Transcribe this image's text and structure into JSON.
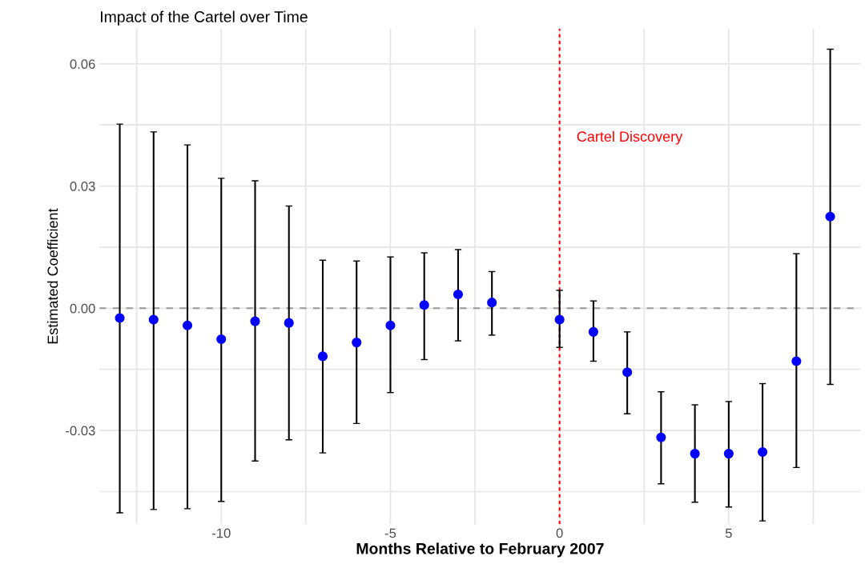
{
  "chart_data": {
    "type": "scatter",
    "title": "Impact of the Cartel over Time",
    "xlabel": "Months Relative to February 2007",
    "ylabel": "Estimated Coefficient",
    "x": [
      -13,
      -12,
      -11,
      -10,
      -9,
      -8,
      -7,
      -6,
      -5,
      -4,
      -3,
      -2,
      0,
      1,
      2,
      3,
      4,
      5,
      6,
      7,
      8
    ],
    "series": [
      {
        "color": "#0000ff",
        "values": [
          -0.0024,
          -0.0028,
          -0.0042,
          -0.0076,
          -0.0032,
          -0.0036,
          -0.0118,
          -0.0084,
          -0.0042,
          0.0008,
          0.0034,
          0.0014,
          -0.0028,
          -0.0058,
          -0.0157,
          -0.0317,
          -0.0357,
          -0.0357,
          -0.0353,
          -0.013,
          0.0225
        ],
        "errors": [
          [
            -0.0502,
            0.0452
          ],
          [
            -0.0494,
            0.0433
          ],
          [
            -0.0492,
            0.0401
          ],
          [
            -0.0474,
            0.0319
          ],
          [
            -0.0375,
            0.0313
          ],
          [
            -0.0323,
            0.0251
          ],
          [
            -0.0355,
            0.0118
          ],
          [
            -0.0283,
            0.0116
          ],
          [
            -0.0207,
            0.0126
          ],
          [
            -0.0126,
            0.0136
          ],
          [
            -0.008,
            0.0144
          ],
          [
            -0.0066,
            0.009
          ],
          [
            -0.0096,
            0.0044
          ],
          [
            -0.013,
            0.0018
          ],
          [
            -0.0259,
            -0.0058
          ],
          [
            -0.0431,
            -0.0205
          ],
          [
            -0.0476,
            -0.0237
          ],
          [
            -0.0488,
            -0.0229
          ],
          [
            -0.0522,
            -0.0185
          ],
          [
            -0.0391,
            0.0134
          ],
          [
            -0.0187,
            0.0636
          ]
        ]
      }
    ],
    "xlim": [
      -13.6,
      8.9
    ],
    "ylim": [
      -0.053,
      0.0686
    ],
    "xticks": [
      {
        "value": -12.5,
        "label": null
      },
      {
        "value": -10,
        "label": "-10"
      },
      {
        "value": -7.5,
        "label": null
      },
      {
        "value": -5,
        "label": "-5"
      },
      {
        "value": -2.5,
        "label": null
      },
      0,
      {
        "value": 2.5,
        "label": null
      },
      5,
      {
        "value": 7.5,
        "label": null
      }
    ],
    "yticks": [
      {
        "value": -0.045,
        "label": null
      },
      {
        "value": -0.03,
        "label": "-0.03"
      },
      {
        "value": -0.015,
        "label": null
      },
      {
        "value": 0,
        "label": "0.00"
      },
      {
        "value": 0.015,
        "label": null
      },
      {
        "value": 0.03,
        "label": "0.03"
      },
      {
        "value": 0.045,
        "label": null
      },
      {
        "value": 0.06,
        "label": "0.06"
      }
    ],
    "grid": true,
    "marker": "circle",
    "ref_lines": [
      {
        "axis": "x",
        "value": 0,
        "label": "Cartel Discovery",
        "color": "#ff0000",
        "line_style": "dotted"
      },
      {
        "axis": "y",
        "value": 0,
        "label": null,
        "color": "#999999",
        "line_style": "dashed"
      }
    ]
  }
}
